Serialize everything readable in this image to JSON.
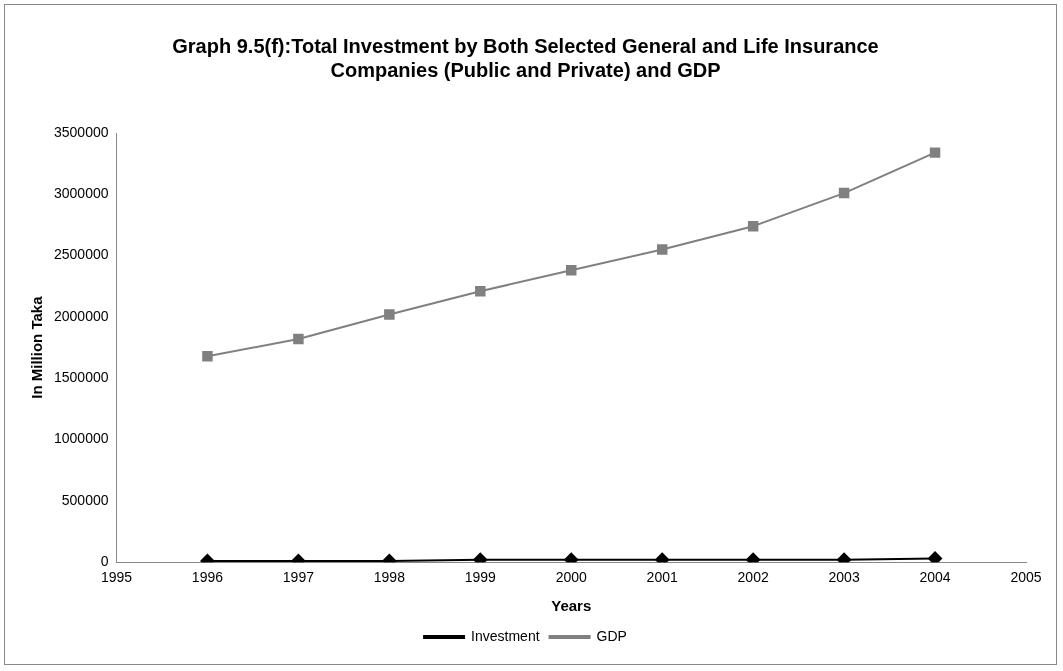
{
  "chart_data": {
    "type": "line",
    "title": "Graph 9.5(f):Total Investment by Both Selected General and Life Insurance Companies (Public and Private) and GDP",
    "xlabel": "Years",
    "ylabel": "In Million Taka",
    "x": [
      1996,
      1997,
      1998,
      1999,
      2000,
      2001,
      2002,
      2003,
      2004
    ],
    "series": [
      {
        "name": "Investment",
        "color": "#000000",
        "marker": "diamond",
        "values": [
          10000,
          10000,
          10000,
          20000,
          20000,
          20000,
          20000,
          20000,
          30000
        ]
      },
      {
        "name": "GDP",
        "color": "#808080",
        "marker": "square",
        "values": [
          1680000,
          1820000,
          2020000,
          2210000,
          2380000,
          2550000,
          2740000,
          3010000,
          3340000
        ]
      }
    ],
    "xlim": [
      1995,
      2005
    ],
    "xticks": [
      1995,
      1996,
      1997,
      1998,
      1999,
      2000,
      2001,
      2002,
      2003,
      2004,
      2005
    ],
    "ylim": [
      0,
      3500000
    ],
    "yticks": [
      0,
      500000,
      1000000,
      1500000,
      2000000,
      2500000,
      3000000,
      3500000
    ],
    "grid": false,
    "legend": "bottom",
    "line_style": "solid"
  }
}
